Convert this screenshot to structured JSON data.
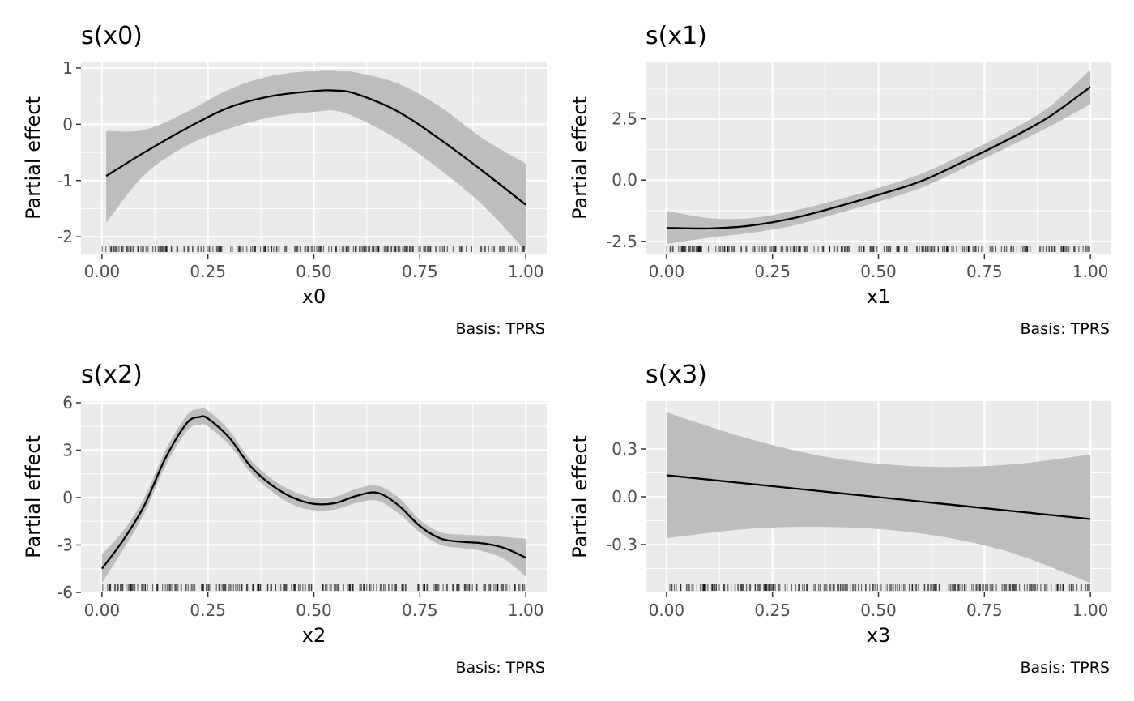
{
  "colors": {
    "panel_background": "#ebebeb",
    "grid_major": "#ffffff",
    "ribbon": "#bdbdbd",
    "line": "#000000",
    "rug": "#000000",
    "tick_text": "#4d4d4d"
  },
  "chart_data": [
    {
      "type": "line",
      "title": "s(x0)",
      "xlabel": "x0",
      "ylabel": "Partial effect",
      "caption": "Basis: TPRS",
      "xlim": [
        0.0,
        1.0
      ],
      "ylim": [
        -2.3,
        1.1
      ],
      "xticks": [
        0.0,
        0.25,
        0.5,
        0.75,
        1.0
      ],
      "xtick_labels": [
        "0.00",
        "0.25",
        "0.50",
        "0.75",
        "1.00"
      ],
      "yticks": [
        -2,
        -1,
        0,
        1
      ],
      "ytick_labels": [
        "-2",
        "-1",
        "0",
        "1"
      ],
      "grid": true,
      "x": [
        0.01,
        0.1,
        0.2,
        0.3,
        0.4,
        0.5,
        0.55,
        0.6,
        0.7,
        0.8,
        0.9,
        1.0
      ],
      "estimate": [
        -0.92,
        -0.5,
        -0.07,
        0.3,
        0.5,
        0.59,
        0.6,
        0.54,
        0.22,
        -0.28,
        -0.84,
        -1.43
      ],
      "lower": [
        -1.75,
        -0.9,
        -0.38,
        -0.08,
        0.13,
        0.22,
        0.24,
        0.12,
        -0.28,
        -0.82,
        -1.45,
        -2.25
      ],
      "upper": [
        -0.12,
        -0.1,
        0.22,
        0.62,
        0.86,
        0.95,
        0.96,
        0.92,
        0.72,
        0.3,
        -0.26,
        -0.7
      ],
      "rug_seed": 11
    },
    {
      "type": "line",
      "title": "s(x1)",
      "xlabel": "x1",
      "ylabel": "Partial effect",
      "caption": "Basis: TPRS",
      "xlim": [
        0.0,
        1.0
      ],
      "ylim": [
        -3.0,
        4.8
      ],
      "xticks": [
        0.0,
        0.25,
        0.5,
        0.75,
        1.0
      ],
      "xtick_labels": [
        "0.00",
        "0.25",
        "0.50",
        "0.75",
        "1.00"
      ],
      "yticks": [
        -2.5,
        0.0,
        2.5
      ],
      "ytick_labels": [
        "-2.5",
        "0.0",
        "2.5"
      ],
      "grid": true,
      "x": [
        0.0,
        0.1,
        0.2,
        0.3,
        0.4,
        0.5,
        0.6,
        0.7,
        0.8,
        0.9,
        1.0
      ],
      "estimate": [
        -1.95,
        -1.97,
        -1.85,
        -1.55,
        -1.1,
        -0.6,
        -0.05,
        0.75,
        1.6,
        2.55,
        3.8
      ],
      "lower": [
        -2.6,
        -2.35,
        -2.15,
        -1.85,
        -1.38,
        -0.88,
        -0.32,
        0.48,
        1.3,
        2.15,
        3.1
      ],
      "upper": [
        -1.25,
        -1.55,
        -1.55,
        -1.25,
        -0.82,
        -0.32,
        0.25,
        1.05,
        1.92,
        2.95,
        4.5
      ],
      "rug_seed": 23
    },
    {
      "type": "line",
      "title": "s(x2)",
      "xlabel": "x2",
      "ylabel": "Partial effect",
      "caption": "Basis: TPRS",
      "xlim": [
        0.0,
        1.0
      ],
      "ylim": [
        -6.0,
        6.1
      ],
      "xticks": [
        0.0,
        0.25,
        0.5,
        0.75,
        1.0
      ],
      "xtick_labels": [
        "0.00",
        "0.25",
        "0.50",
        "0.75",
        "1.00"
      ],
      "yticks": [
        -6,
        -3,
        0,
        3,
        6
      ],
      "ytick_labels": [
        "-6",
        "-3",
        "0",
        "3",
        "6"
      ],
      "grid": true,
      "x": [
        0.0,
        0.05,
        0.1,
        0.15,
        0.2,
        0.23,
        0.25,
        0.3,
        0.35,
        0.4,
        0.45,
        0.5,
        0.55,
        0.6,
        0.65,
        0.7,
        0.75,
        0.8,
        0.85,
        0.9,
        0.95,
        1.0
      ],
      "estimate": [
        -4.5,
        -2.7,
        -0.5,
        2.5,
        4.7,
        5.1,
        5.0,
        3.8,
        2.0,
        0.8,
        0.0,
        -0.4,
        -0.35,
        0.1,
        0.3,
        -0.5,
        -1.8,
        -2.6,
        -2.8,
        -2.9,
        -3.2,
        -3.8
      ],
      "lower": [
        -5.4,
        -3.3,
        -1.0,
        2.0,
        4.2,
        4.6,
        4.5,
        3.35,
        1.6,
        0.4,
        -0.45,
        -0.8,
        -0.75,
        -0.35,
        -0.2,
        -1.0,
        -2.2,
        -3.0,
        -3.2,
        -3.4,
        -3.9,
        -5.0
      ],
      "upper": [
        -3.6,
        -2.1,
        0.0,
        3.0,
        5.2,
        5.6,
        5.5,
        4.25,
        2.4,
        1.2,
        0.4,
        0.0,
        0.05,
        0.55,
        0.75,
        0.0,
        -1.4,
        -2.2,
        -2.35,
        -2.4,
        -2.5,
        -2.6
      ],
      "rug_seed": 37
    },
    {
      "type": "line",
      "title": "s(x3)",
      "xlabel": "x3",
      "ylabel": "Partial effect",
      "caption": "Basis: TPRS",
      "xlim": [
        0.0,
        1.0
      ],
      "ylim": [
        -0.6,
        0.6
      ],
      "xticks": [
        0.0,
        0.25,
        0.5,
        0.75,
        1.0
      ],
      "xtick_labels": [
        "0.00",
        "0.25",
        "0.50",
        "0.75",
        "1.00"
      ],
      "yticks": [
        -0.3,
        0.0,
        0.3
      ],
      "ytick_labels": [
        "-0.3",
        "0.0",
        "0.3"
      ],
      "grid": true,
      "x": [
        0.0,
        0.2,
        0.4,
        0.6,
        0.8,
        1.0
      ],
      "estimate": [
        0.135,
        0.08,
        0.025,
        -0.03,
        -0.085,
        -0.14
      ],
      "lower": [
        -0.26,
        -0.2,
        -0.19,
        -0.23,
        -0.34,
        -0.54
      ],
      "upper": [
        0.53,
        0.36,
        0.24,
        0.19,
        0.2,
        0.265
      ],
      "rug_seed": 53
    }
  ]
}
